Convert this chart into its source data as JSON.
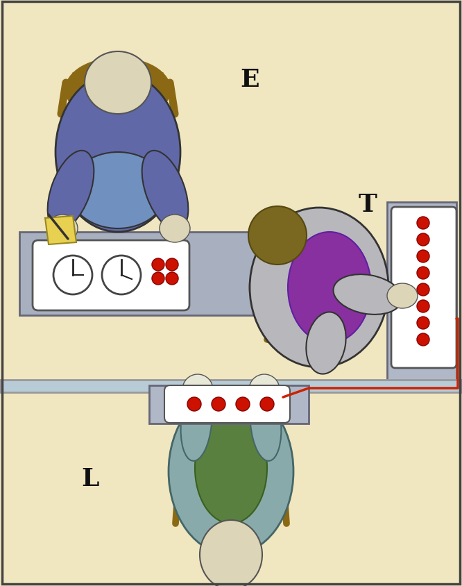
{
  "bg_color": "#f0e6c0",
  "wall_color": "#b8ccd8",
  "wall_border": "#999999",
  "chair_color": "#8B6914",
  "skin_color": "#c8bfa0",
  "skin_light": "#ddd5b8",
  "person_E_shirt": "#6068a8",
  "person_E_pants": "#7090c0",
  "person_T_outer": "#b8b8bc",
  "person_T_inner": "#8830a0",
  "person_T_head": "#7a6820",
  "person_L_outer": "#88aaaa",
  "person_L_inner": "#5a8040",
  "desk_color": "#a8b0c0",
  "shock_box_color": "#b0b8c8",
  "panel_white": "#ffffff",
  "wire_color": "#cc2200",
  "dot_color": "#cc1100",
  "dot_edge": "#880000",
  "outline": "#333333",
  "outline_thin": "#555555",
  "label_E": "E",
  "label_T": "T",
  "label_L": "L",
  "label_fs": 26,
  "label_color": "#111111",
  "fig_w": 6.66,
  "fig_h": 8.45,
  "dpi": 100
}
